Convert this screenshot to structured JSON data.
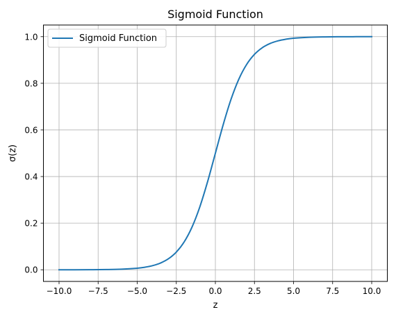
{
  "chart_data": {
    "type": "line",
    "title": "Sigmoid Function",
    "xlabel": "z",
    "ylabel": "σ(z)",
    "xlim": [
      -11.0,
      11.0
    ],
    "ylim": [
      -0.05,
      1.05
    ],
    "grid": true,
    "legend_position": "top-left",
    "xticks": [
      -10.0,
      -7.5,
      -5.0,
      -2.5,
      0.0,
      2.5,
      5.0,
      7.5,
      10.0
    ],
    "xtick_labels": [
      "−10.0",
      "−7.5",
      "−5.0",
      "−2.5",
      "0.0",
      "2.5",
      "5.0",
      "7.5",
      "10.0"
    ],
    "yticks": [
      0.0,
      0.2,
      0.4,
      0.6,
      0.8,
      1.0
    ],
    "ytick_labels": [
      "0.0",
      "0.2",
      "0.4",
      "0.6",
      "0.8",
      "1.0"
    ],
    "series": [
      {
        "name": "Sigmoid Function",
        "color": "#1f77b4",
        "x": [
          -10,
          -9,
          -8,
          -7,
          -6,
          -5,
          -4.5,
          -4,
          -3.5,
          -3,
          -2.5,
          -2,
          -1.5,
          -1,
          -0.5,
          0,
          0.5,
          1,
          1.5,
          2,
          2.5,
          3,
          3.5,
          4,
          4.5,
          5,
          6,
          7,
          8,
          9,
          10
        ],
        "y": [
          0.0,
          0.0001,
          0.0003,
          0.0009,
          0.0025,
          0.0067,
          0.011,
          0.018,
          0.0293,
          0.0474,
          0.0759,
          0.1192,
          0.1824,
          0.2689,
          0.3775,
          0.5,
          0.6225,
          0.7311,
          0.8176,
          0.8808,
          0.9241,
          0.9526,
          0.9707,
          0.982,
          0.989,
          0.9933,
          0.9975,
          0.9991,
          0.9997,
          0.9999,
          1.0
        ]
      }
    ]
  }
}
